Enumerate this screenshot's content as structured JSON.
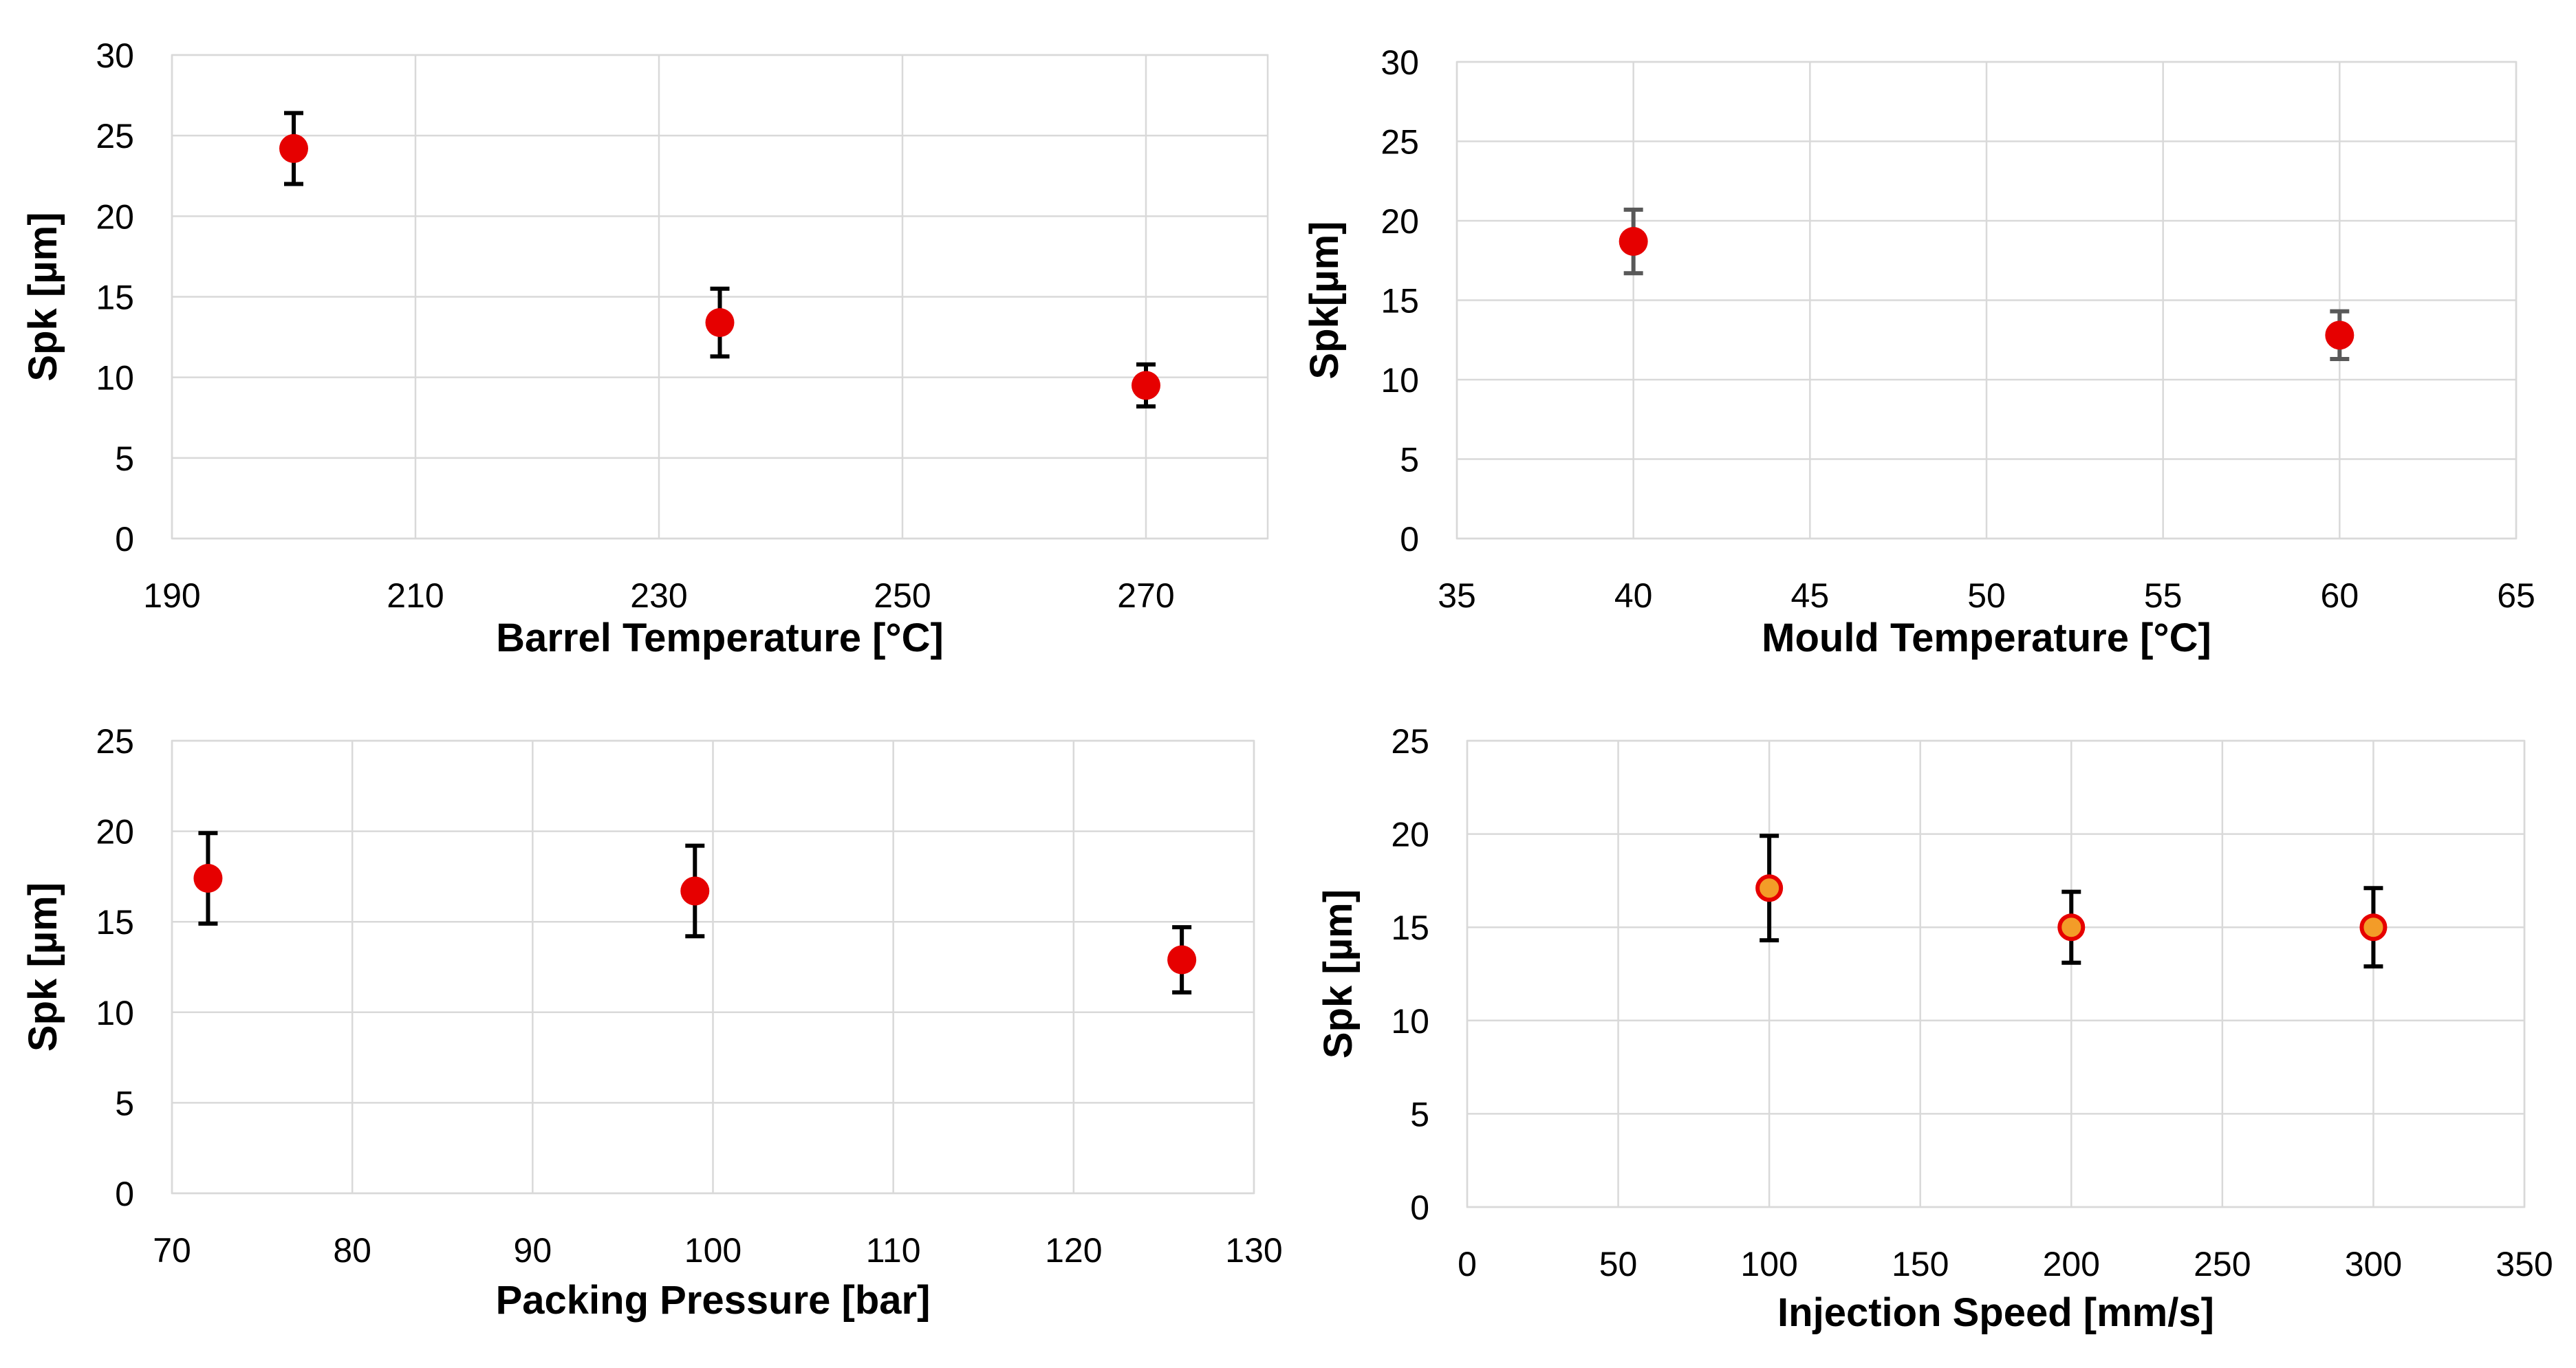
{
  "colors": {
    "marker": "#e60000",
    "marker_orange_fill": "#f39c28",
    "marker_orange_edge": "#e60000",
    "error_bar": "#000000",
    "error_bar_gray": "#595959",
    "grid": "#d9d9d9"
  },
  "chart_data": [
    {
      "type": "scatter",
      "name": "barrel-temperature",
      "xlabel": "Barrel Temperature [°C]",
      "ylabel": "Spk [µm]",
      "xlim": [
        190,
        280
      ],
      "ylim": [
        0,
        30
      ],
      "xticks": [
        190,
        210,
        230,
        250,
        270
      ],
      "yticks": [
        0,
        5,
        10,
        15,
        20,
        25,
        30
      ],
      "xgrid_step": 20,
      "marker_style": "red",
      "error_color": "black",
      "points": [
        {
          "x": 200,
          "y": 24.2,
          "err": 2.2
        },
        {
          "x": 235,
          "y": 13.4,
          "err": 2.1
        },
        {
          "x": 270,
          "y": 9.5,
          "err": 1.3
        }
      ]
    },
    {
      "type": "scatter",
      "name": "mould-temperature",
      "xlabel": "Mould Temperature [°C]",
      "ylabel": "Spk[µm]",
      "xlim": [
        35,
        65
      ],
      "ylim": [
        0,
        30
      ],
      "xticks": [
        35,
        40,
        45,
        50,
        55,
        60,
        65
      ],
      "yticks": [
        0,
        5,
        10,
        15,
        20,
        25,
        30
      ],
      "xgrid_step": 5,
      "marker_style": "red",
      "error_color": "gray",
      "points": [
        {
          "x": 40,
          "y": 18.7,
          "err": 2.0
        },
        {
          "x": 60,
          "y": 12.8,
          "err": 1.5
        }
      ]
    },
    {
      "type": "scatter",
      "name": "packing-pressure",
      "xlabel": "Packing Pressure [bar]",
      "ylabel": "Spk [µm]",
      "xlim": [
        70,
        130
      ],
      "ylim": [
        0,
        25
      ],
      "xticks": [
        70,
        80,
        90,
        100,
        110,
        120,
        130
      ],
      "yticks": [
        0,
        5,
        10,
        15,
        20,
        25
      ],
      "xgrid_step": 10,
      "marker_style": "red",
      "error_color": "black",
      "points": [
        {
          "x": 72,
          "y": 17.4,
          "err": 2.5
        },
        {
          "x": 99,
          "y": 16.7,
          "err": 2.5
        },
        {
          "x": 126,
          "y": 12.9,
          "err": 1.8
        }
      ]
    },
    {
      "type": "scatter",
      "name": "injection-speed",
      "xlabel": "Injection Speed [mm/s]",
      "ylabel": "Spk [µm]",
      "xlim": [
        0,
        350
      ],
      "ylim": [
        0,
        25
      ],
      "xticks": [
        0,
        50,
        100,
        150,
        200,
        250,
        300,
        350
      ],
      "yticks": [
        0,
        5,
        10,
        15,
        20,
        25
      ],
      "xgrid_step": 50,
      "marker_style": "orange",
      "error_color": "black",
      "points": [
        {
          "x": 100,
          "y": 17.1,
          "err": 2.8
        },
        {
          "x": 200,
          "y": 15.0,
          "err": 1.9
        },
        {
          "x": 300,
          "y": 15.0,
          "err": 2.1
        }
      ]
    }
  ]
}
